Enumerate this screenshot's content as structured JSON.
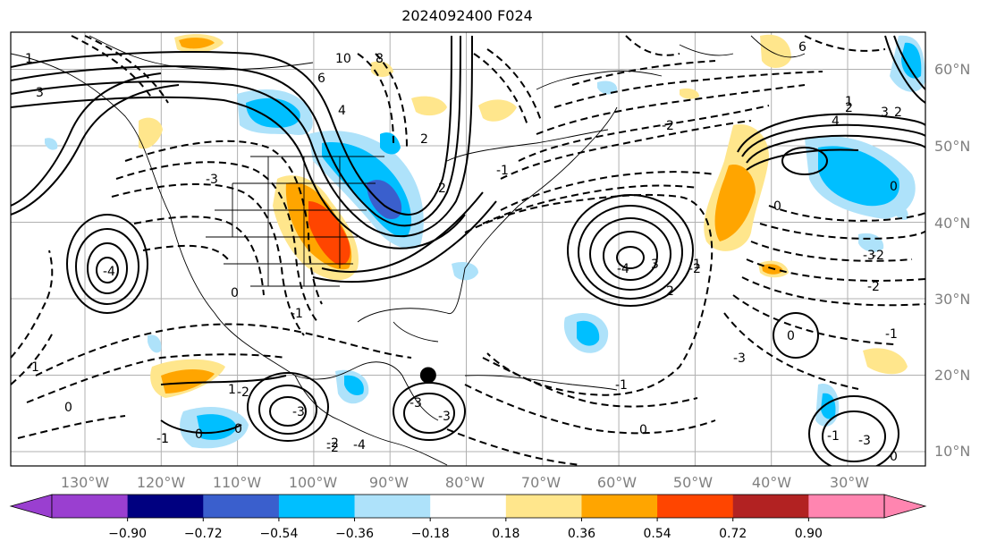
{
  "title": "2024092400 F024",
  "map": {
    "lat_labels": [
      "60°N",
      "50°N",
      "40°N",
      "30°N",
      "20°N",
      "10°N"
    ],
    "lon_labels": [
      "130°W",
      "120°W",
      "110°W",
      "100°W",
      "90°W",
      "80°W",
      "70°W",
      "60°W",
      "50°W",
      "40°W",
      "30°W"
    ],
    "marker": {
      "lon": -85.0,
      "lat": 20.0,
      "color": "#000000"
    }
  },
  "colorbar": {
    "ticks": [
      "−0.90",
      "−0.72",
      "−0.54",
      "−0.36",
      "−0.18",
      "0.18",
      "0.36",
      "0.54",
      "0.72",
      "0.90"
    ],
    "colors": [
      "#9a3fd0",
      "#000080",
      "#3a5fcd",
      "#00bfff",
      "#aee2fa",
      "#ffffff",
      "#ffe68c",
      "#ffa500",
      "#ff4500",
      "#b22222",
      "#ff85b0"
    ]
  },
  "contour_labels": [
    "10",
    "8",
    "6",
    "4",
    "3",
    "2",
    "1",
    "-1",
    "-2",
    "-3",
    "-4",
    "0",
    "6",
    "4",
    "3",
    "2",
    "1",
    "-2",
    "-3",
    "0",
    "-1",
    "-2",
    "-3",
    "-4",
    "3",
    "2",
    "1",
    "0",
    "-1",
    "-2",
    "-3",
    "-4",
    "1",
    "0",
    "-2",
    "-3",
    "2",
    "1",
    "-2",
    "-3",
    "-1",
    "0",
    "0",
    "-1",
    "-1",
    "0",
    "2",
    "-3",
    "-2",
    "-1",
    "0",
    "0"
  ]
}
